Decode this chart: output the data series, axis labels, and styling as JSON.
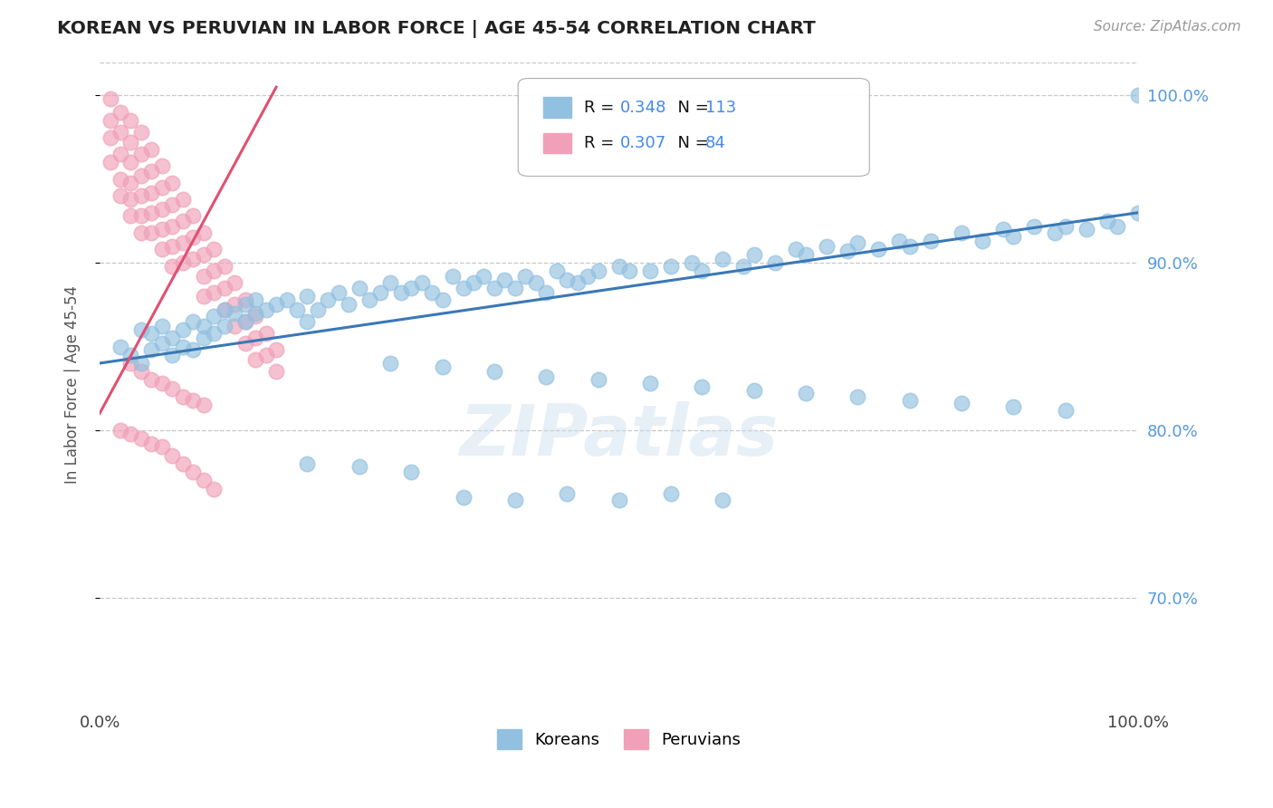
{
  "title": "KOREAN VS PERUVIAN IN LABOR FORCE | AGE 45-54 CORRELATION CHART",
  "source_text": "Source: ZipAtlas.com",
  "ylabel": "In Labor Force | Age 45-54",
  "xlim": [
    0.0,
    1.0
  ],
  "ylim": [
    0.635,
    1.02
  ],
  "yticks": [
    0.7,
    0.8,
    0.9,
    1.0
  ],
  "ytick_labels": [
    "70.0%",
    "80.0%",
    "90.0%",
    "100.0%"
  ],
  "xtick_labels": [
    "0.0%",
    "",
    "",
    "",
    "100.0%"
  ],
  "watermark": "ZIPatlas",
  "legend_blue_r": "R = 0.348",
  "legend_blue_n": "N = 113",
  "legend_pink_r": "R = 0.307",
  "legend_pink_n": "N = 84",
  "legend_label_blue": "Koreans",
  "legend_label_pink": "Peruvians",
  "blue_color": "#92C0E0",
  "pink_color": "#F0A0B8",
  "trendline_blue_color": "#3A78B5",
  "trendline_pink_color": "#E05070",
  "title_color": "#222222",
  "axis_label_color": "#555555",
  "tick_color_right": "#5599DD",
  "background_color": "#FFFFFF",
  "grid_color": "#C8C8C8",
  "legend_n_color": "#4488EE",
  "blue_scatter_x": [
    0.02,
    0.03,
    0.04,
    0.04,
    0.05,
    0.05,
    0.06,
    0.06,
    0.07,
    0.07,
    0.08,
    0.08,
    0.09,
    0.09,
    0.1,
    0.1,
    0.11,
    0.11,
    0.12,
    0.12,
    0.13,
    0.14,
    0.14,
    0.15,
    0.15,
    0.16,
    0.17,
    0.18,
    0.19,
    0.2,
    0.2,
    0.21,
    0.22,
    0.23,
    0.24,
    0.25,
    0.26,
    0.27,
    0.28,
    0.29,
    0.3,
    0.31,
    0.32,
    0.33,
    0.34,
    0.35,
    0.36,
    0.37,
    0.38,
    0.39,
    0.4,
    0.41,
    0.42,
    0.43,
    0.44,
    0.45,
    0.46,
    0.47,
    0.48,
    0.5,
    0.51,
    0.53,
    0.55,
    0.57,
    0.58,
    0.6,
    0.62,
    0.63,
    0.65,
    0.67,
    0.68,
    0.7,
    0.72,
    0.73,
    0.75,
    0.77,
    0.78,
    0.8,
    0.83,
    0.85,
    0.87,
    0.88,
    0.9,
    0.92,
    0.93,
    0.95,
    0.97,
    0.98,
    1.0,
    1.0,
    0.35,
    0.4,
    0.45,
    0.5,
    0.55,
    0.6,
    0.3,
    0.25,
    0.2,
    0.28,
    0.33,
    0.38,
    0.43,
    0.48,
    0.53,
    0.58,
    0.63,
    0.68,
    0.73,
    0.78,
    0.83,
    0.88,
    0.93
  ],
  "blue_scatter_y": [
    0.85,
    0.845,
    0.86,
    0.84,
    0.858,
    0.848,
    0.862,
    0.852,
    0.855,
    0.845,
    0.86,
    0.85,
    0.865,
    0.848,
    0.862,
    0.855,
    0.868,
    0.858,
    0.872,
    0.862,
    0.87,
    0.875,
    0.865,
    0.878,
    0.87,
    0.872,
    0.875,
    0.878,
    0.872,
    0.865,
    0.88,
    0.872,
    0.878,
    0.882,
    0.875,
    0.885,
    0.878,
    0.882,
    0.888,
    0.882,
    0.885,
    0.888,
    0.882,
    0.878,
    0.892,
    0.885,
    0.888,
    0.892,
    0.885,
    0.89,
    0.885,
    0.892,
    0.888,
    0.882,
    0.895,
    0.89,
    0.888,
    0.892,
    0.895,
    0.898,
    0.895,
    0.895,
    0.898,
    0.9,
    0.895,
    0.902,
    0.898,
    0.905,
    0.9,
    0.908,
    0.905,
    0.91,
    0.907,
    0.912,
    0.908,
    0.913,
    0.91,
    0.913,
    0.918,
    0.913,
    0.92,
    0.916,
    0.922,
    0.918,
    0.922,
    0.92,
    0.925,
    0.922,
    0.93,
    1.0,
    0.76,
    0.758,
    0.762,
    0.758,
    0.762,
    0.758,
    0.775,
    0.778,
    0.78,
    0.84,
    0.838,
    0.835,
    0.832,
    0.83,
    0.828,
    0.826,
    0.824,
    0.822,
    0.82,
    0.818,
    0.816,
    0.814,
    0.812
  ],
  "pink_scatter_x": [
    0.01,
    0.01,
    0.01,
    0.01,
    0.02,
    0.02,
    0.02,
    0.02,
    0.02,
    0.03,
    0.03,
    0.03,
    0.03,
    0.03,
    0.03,
    0.04,
    0.04,
    0.04,
    0.04,
    0.04,
    0.04,
    0.05,
    0.05,
    0.05,
    0.05,
    0.05,
    0.06,
    0.06,
    0.06,
    0.06,
    0.06,
    0.07,
    0.07,
    0.07,
    0.07,
    0.07,
    0.08,
    0.08,
    0.08,
    0.08,
    0.09,
    0.09,
    0.09,
    0.1,
    0.1,
    0.1,
    0.1,
    0.11,
    0.11,
    0.11,
    0.12,
    0.12,
    0.12,
    0.13,
    0.13,
    0.13,
    0.14,
    0.14,
    0.14,
    0.15,
    0.15,
    0.15,
    0.16,
    0.16,
    0.17,
    0.17,
    0.03,
    0.04,
    0.05,
    0.06,
    0.07,
    0.08,
    0.09,
    0.1,
    0.02,
    0.03,
    0.04,
    0.05,
    0.06,
    0.07,
    0.08,
    0.09,
    0.1,
    0.11
  ],
  "pink_scatter_y": [
    0.998,
    0.985,
    0.975,
    0.96,
    0.99,
    0.978,
    0.965,
    0.95,
    0.94,
    0.985,
    0.972,
    0.96,
    0.948,
    0.938,
    0.928,
    0.978,
    0.965,
    0.952,
    0.94,
    0.928,
    0.918,
    0.968,
    0.955,
    0.942,
    0.93,
    0.918,
    0.958,
    0.945,
    0.932,
    0.92,
    0.908,
    0.948,
    0.935,
    0.922,
    0.91,
    0.898,
    0.938,
    0.925,
    0.912,
    0.9,
    0.928,
    0.915,
    0.902,
    0.918,
    0.905,
    0.892,
    0.88,
    0.908,
    0.895,
    0.882,
    0.898,
    0.885,
    0.872,
    0.888,
    0.875,
    0.862,
    0.878,
    0.865,
    0.852,
    0.868,
    0.855,
    0.842,
    0.858,
    0.845,
    0.848,
    0.835,
    0.84,
    0.835,
    0.83,
    0.828,
    0.825,
    0.82,
    0.818,
    0.815,
    0.8,
    0.798,
    0.795,
    0.792,
    0.79,
    0.785,
    0.78,
    0.775,
    0.77,
    0.765
  ],
  "blue_trendline_x": [
    0.0,
    1.0
  ],
  "blue_trendline_y": [
    0.84,
    0.93
  ],
  "pink_trendline_x": [
    0.0,
    0.17
  ],
  "pink_trendline_y": [
    0.81,
    1.005
  ]
}
